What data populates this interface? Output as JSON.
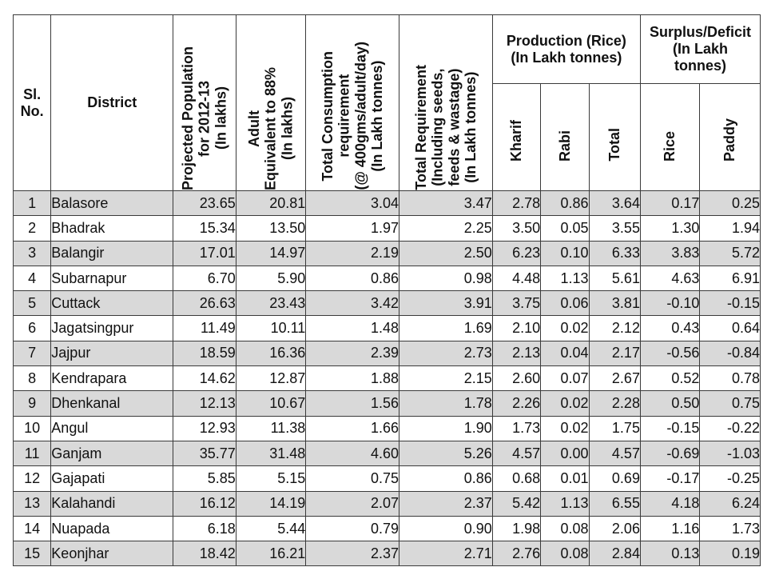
{
  "headers": {
    "sl_no": "Sl. No.",
    "district": "District",
    "projected_population": [
      "Projected Population",
      "for 2012-13",
      "(In lakhs)"
    ],
    "adult_equivalent": [
      "Adult",
      "Equivalent  to 88%",
      "(In lakhs)"
    ],
    "total_consumption": [
      "Total Consumption",
      "requirement",
      "(@ 400gms/adult/day)",
      "(In Lakh tonnes)"
    ],
    "total_requirement": [
      "Total Requirement",
      "(Including seeds,",
      "feeds & wastage)",
      "(In Lakh tonnes)"
    ],
    "production_group": [
      "Production (Rice)",
      "(In Lakh tonnes)"
    ],
    "production_sub": [
      "Kharif",
      "Rabi",
      "Total"
    ],
    "surplus_group": [
      "Surplus/Deficit",
      "(In Lakh",
      "tonnes)"
    ],
    "surplus_sub": [
      "Rice",
      "Paddy"
    ]
  },
  "rows": [
    [
      "1",
      "Balasore",
      "23.65",
      "20.81",
      "3.04",
      "3.47",
      "2.78",
      "0.86",
      "3.64",
      "0.17",
      "0.25"
    ],
    [
      "2",
      "Bhadrak",
      "15.34",
      "13.50",
      "1.97",
      "2.25",
      "3.50",
      "0.05",
      "3.55",
      "1.30",
      "1.94"
    ],
    [
      "3",
      "Balangir",
      "17.01",
      "14.97",
      "2.19",
      "2.50",
      "6.23",
      "0.10",
      "6.33",
      "3.83",
      "5.72"
    ],
    [
      "4",
      "Subarnapur",
      "6.70",
      "5.90",
      "0.86",
      "0.98",
      "4.48",
      "1.13",
      "5.61",
      "4.63",
      "6.91"
    ],
    [
      "5",
      "Cuttack",
      "26.63",
      "23.43",
      "3.42",
      "3.91",
      "3.75",
      "0.06",
      "3.81",
      "-0.10",
      "-0.15"
    ],
    [
      "6",
      "Jagatsingpur",
      "11.49",
      "10.11",
      "1.48",
      "1.69",
      "2.10",
      "0.02",
      "2.12",
      "0.43",
      "0.64"
    ],
    [
      "7",
      "Jajpur",
      "18.59",
      "16.36",
      "2.39",
      "2.73",
      "2.13",
      "0.04",
      "2.17",
      "-0.56",
      "-0.84"
    ],
    [
      "8",
      "Kendrapara",
      "14.62",
      "12.87",
      "1.88",
      "2.15",
      "2.60",
      "0.07",
      "2.67",
      "0.52",
      "0.78"
    ],
    [
      "9",
      "Dhenkanal",
      "12.13",
      "10.67",
      "1.56",
      "1.78",
      "2.26",
      "0.02",
      "2.28",
      "0.50",
      "0.75"
    ],
    [
      "10",
      "Angul",
      "12.93",
      "11.38",
      "1.66",
      "1.90",
      "1.73",
      "0.02",
      "1.75",
      "-0.15",
      "-0.22"
    ],
    [
      "11",
      "Ganjam",
      "35.77",
      "31.48",
      "4.60",
      "5.26",
      "4.57",
      "0.00",
      "4.57",
      "-0.69",
      "-1.03"
    ],
    [
      "12",
      "Gajapati",
      "5.85",
      "5.15",
      "0.75",
      "0.86",
      "0.68",
      "0.01",
      "0.69",
      "-0.17",
      "-0.25"
    ],
    [
      "13",
      "Kalahandi",
      "16.12",
      "14.19",
      "2.07",
      "2.37",
      "5.42",
      "1.13",
      "6.55",
      "4.18",
      "6.24"
    ],
    [
      "14",
      "Nuapada",
      "6.18",
      "5.44",
      "0.79",
      "0.90",
      "1.98",
      "0.08",
      "2.06",
      "1.16",
      "1.73"
    ],
    [
      "15",
      "Keonjhar",
      "18.42",
      "16.21",
      "2.37",
      "2.71",
      "2.76",
      "0.08",
      "2.84",
      "0.13",
      "0.19"
    ]
  ]
}
